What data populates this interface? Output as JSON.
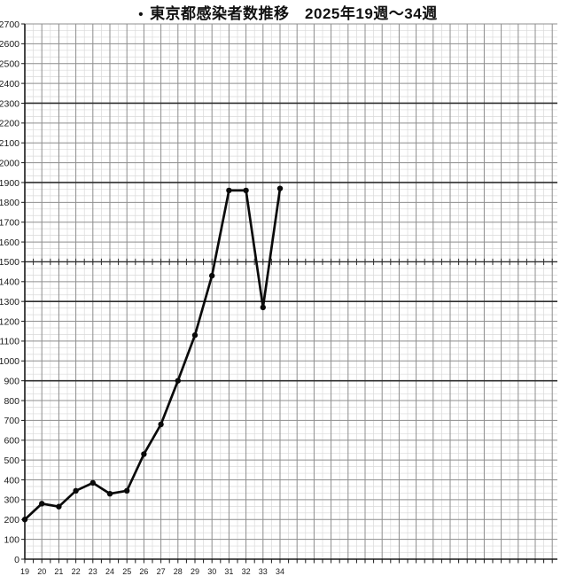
{
  "title": {
    "bullet": "•",
    "text": "東京都感染者数推移　2025年19週～34週"
  },
  "chart_data": {
    "type": "line",
    "title": "東京都感染者数推移 2025年19週～34週",
    "x_unit": "週",
    "x": [
      19,
      20,
      21,
      22,
      23,
      24,
      25,
      26,
      27,
      28,
      29,
      30,
      31,
      32,
      33,
      34
    ],
    "series": [
      {
        "name": "東京都感染者数",
        "color": "#0a0a0a",
        "values": [
          200,
          280,
          265,
          345,
          385,
          330,
          345,
          530,
          680,
          900,
          1130,
          1430,
          1860,
          1860,
          1270,
          1870
        ]
      }
    ],
    "ylim": [
      0,
      2700
    ],
    "ytick_step": 100,
    "y_ticks": [
      0,
      100,
      200,
      300,
      400,
      500,
      600,
      700,
      800,
      900,
      1000,
      1100,
      1200,
      1300,
      1400,
      1500,
      1600,
      1700,
      1800,
      1900,
      2000,
      2100,
      2200,
      2300,
      2400,
      2500,
      2600,
      2700
    ],
    "x_ticks": [
      19,
      20,
      21,
      22,
      23,
      24,
      25,
      26,
      27,
      28,
      29,
      30,
      31,
      32,
      33,
      34
    ],
    "grid": "graph-paper",
    "strong_gridlines_y": [
      900,
      1300,
      1900,
      2300
    ],
    "ticked_gridline_y": 1500,
    "legend": "none",
    "marker": "dot"
  },
  "colors": {
    "line": "#0a0a0a",
    "grid_minor": "#d9d9d9",
    "grid_major": "#8f8f8f",
    "grid_strong": "#2e2e2e",
    "axis": "#1a1a1a",
    "label": "#1a1a1a"
  }
}
